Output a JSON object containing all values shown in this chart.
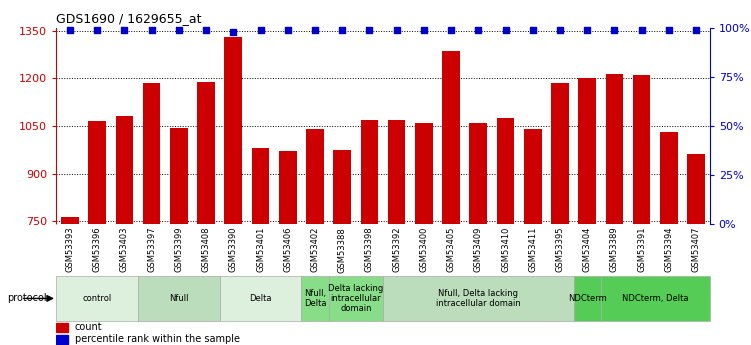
{
  "title": "GDS1690 / 1629655_at",
  "samples": [
    "GSM53393",
    "GSM53396",
    "GSM53403",
    "GSM53397",
    "GSM53399",
    "GSM53408",
    "GSM53390",
    "GSM53401",
    "GSM53406",
    "GSM53402",
    "GSM53388",
    "GSM53398",
    "GSM53392",
    "GSM53400",
    "GSM53405",
    "GSM53409",
    "GSM53410",
    "GSM53411",
    "GSM53395",
    "GSM53404",
    "GSM53389",
    "GSM53391",
    "GSM53394",
    "GSM53407"
  ],
  "counts": [
    762,
    1065,
    1080,
    1185,
    1043,
    1190,
    1330,
    980,
    970,
    1040,
    975,
    1070,
    1070,
    1060,
    1285,
    1060,
    1075,
    1040,
    1185,
    1200,
    1215,
    1210,
    1030,
    960
  ],
  "percentiles": [
    99,
    99,
    99,
    99,
    99,
    99,
    98,
    99,
    99,
    99,
    99,
    99,
    99,
    99,
    99,
    99,
    99,
    99,
    99,
    99,
    99,
    99,
    99,
    99
  ],
  "bar_color": "#cc0000",
  "dot_color": "#0000cc",
  "ylim_left": [
    740,
    1360
  ],
  "ylim_right": [
    0,
    100
  ],
  "yticks_left": [
    750,
    900,
    1050,
    1200,
    1350
  ],
  "yticks_right": [
    0,
    25,
    50,
    75,
    100
  ],
  "groups": [
    {
      "label": "control",
      "start": 0,
      "end": 3,
      "color": "#ddf0dd"
    },
    {
      "label": "Nfull",
      "start": 3,
      "end": 6,
      "color": "#bbddbb"
    },
    {
      "label": "Delta",
      "start": 6,
      "end": 9,
      "color": "#ddf0dd"
    },
    {
      "label": "Nfull,\nDelta",
      "start": 9,
      "end": 10,
      "color": "#88dd88"
    },
    {
      "label": "Delta lacking\nintracellular\ndomain",
      "start": 10,
      "end": 12,
      "color": "#88dd88"
    },
    {
      "label": "Nfull, Delta lacking\nintracellular domain",
      "start": 12,
      "end": 19,
      "color": "#bbddbb"
    },
    {
      "label": "NDCterm",
      "start": 19,
      "end": 20,
      "color": "#55cc55"
    },
    {
      "label": "NDCterm, Delta",
      "start": 20,
      "end": 24,
      "color": "#55cc55"
    }
  ],
  "legend_count_label": "count",
  "legend_pct_label": "percentile rank within the sample",
  "protocol_label": "protocol",
  "pct_near_100": 99,
  "pct_low": 98
}
